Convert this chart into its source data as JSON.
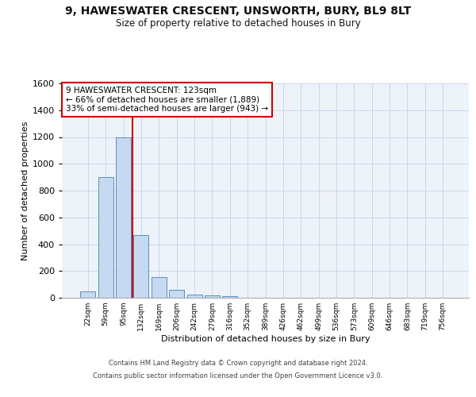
{
  "title_line1": "9, HAWESWATER CRESCENT, UNSWORTH, BURY, BL9 8LT",
  "title_line2": "Size of property relative to detached houses in Bury",
  "xlabel": "Distribution of detached houses by size in Bury",
  "ylabel": "Number of detached properties",
  "bar_color": "#c5d9f0",
  "bar_edge_color": "#5a8fc0",
  "grid_color": "#c8d8e8",
  "background_color": "#eef3fa",
  "vline_color": "#cc0000",
  "annotation_text": "9 HAWESWATER CRESCENT: 123sqm\n← 66% of detached houses are smaller (1,889)\n33% of semi-detached houses are larger (943) →",
  "annotation_box_color": "#ffffff",
  "annotation_border_color": "#cc0000",
  "categories": [
    "22sqm",
    "59sqm",
    "95sqm",
    "132sqm",
    "169sqm",
    "206sqm",
    "242sqm",
    "279sqm",
    "316sqm",
    "352sqm",
    "389sqm",
    "426sqm",
    "462sqm",
    "499sqm",
    "536sqm",
    "573sqm",
    "609sqm",
    "646sqm",
    "683sqm",
    "719sqm",
    "756sqm"
  ],
  "values": [
    50,
    900,
    1200,
    470,
    155,
    60,
    25,
    20,
    13,
    0,
    0,
    0,
    0,
    0,
    0,
    0,
    0,
    0,
    0,
    0,
    0
  ],
  "ylim": [
    0,
    1600
  ],
  "yticks": [
    0,
    200,
    400,
    600,
    800,
    1000,
    1200,
    1400,
    1600
  ],
  "vline_index": 2.5,
  "footer_line1": "Contains HM Land Registry data © Crown copyright and database right 2024.",
  "footer_line2": "Contains public sector information licensed under the Open Government Licence v3.0."
}
